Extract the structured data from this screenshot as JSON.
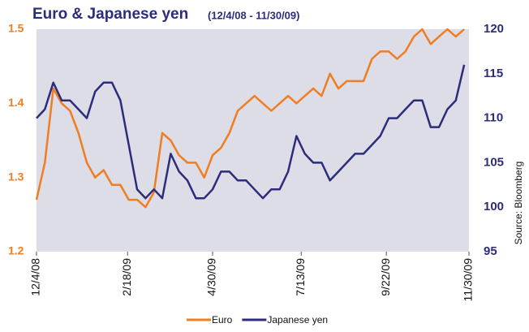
{
  "chart_data": {
    "type": "line",
    "title": "Euro & Japanese yen",
    "subtitle": "(12/4/08 - 11/30/09)",
    "source": "Source: Bloomberg",
    "x": [
      "12/4/08",
      "12/11/08",
      "12/18/08",
      "12/25/08",
      "1/1/09",
      "1/8/09",
      "1/15/09",
      "1/22/09",
      "1/29/09",
      "2/5/09",
      "2/12/09",
      "2/19/09",
      "2/26/09",
      "3/5/09",
      "3/12/09",
      "3/19/09",
      "3/26/09",
      "4/2/09",
      "4/9/09",
      "4/16/09",
      "4/23/09",
      "4/30/09",
      "5/7/09",
      "5/14/09",
      "5/21/09",
      "5/28/09",
      "6/4/09",
      "6/11/09",
      "6/18/09",
      "6/25/09",
      "7/2/09",
      "7/9/09",
      "7/16/09",
      "7/23/09",
      "7/30/09",
      "8/6/09",
      "8/13/09",
      "8/20/09",
      "8/27/09",
      "9/3/09",
      "9/10/09",
      "9/17/09",
      "9/24/09",
      "10/1/09",
      "10/8/09",
      "10/15/09",
      "10/22/09",
      "10/29/09",
      "11/5/09",
      "11/12/09",
      "11/19/09",
      "11/26/09"
    ],
    "xticks": [
      "12/4/08",
      "2/18/09",
      "4/30/09",
      "7/13/09",
      "9/22/09",
      "11/30/09"
    ],
    "series": [
      {
        "name": "Euro",
        "color": "#f07d22",
        "axis": "y",
        "values": [
          1.27,
          1.32,
          1.42,
          1.4,
          1.39,
          1.36,
          1.32,
          1.3,
          1.31,
          1.29,
          1.29,
          1.27,
          1.27,
          1.26,
          1.28,
          1.36,
          1.35,
          1.33,
          1.32,
          1.32,
          1.3,
          1.33,
          1.34,
          1.36,
          1.39,
          1.4,
          1.41,
          1.4,
          1.39,
          1.4,
          1.41,
          1.4,
          1.41,
          1.42,
          1.41,
          1.44,
          1.42,
          1.43,
          1.43,
          1.43,
          1.46,
          1.47,
          1.47,
          1.46,
          1.47,
          1.49,
          1.5,
          1.48,
          1.49,
          1.5,
          1.49,
          1.5
        ]
      },
      {
        "name": "Japanese yen",
        "color": "#2b2d7c",
        "axis": "y2",
        "values": [
          110,
          111,
          114,
          112,
          112,
          111,
          110,
          113,
          114,
          114,
          112,
          107,
          102,
          101,
          102,
          101,
          106,
          104,
          103,
          101,
          101,
          102,
          104,
          104,
          103,
          103,
          102,
          101,
          102,
          102,
          104,
          108,
          106,
          105,
          105,
          103,
          104,
          105,
          106,
          106,
          107,
          108,
          110,
          110,
          111,
          112,
          112,
          109,
          109,
          111,
          112,
          116
        ]
      }
    ],
    "ylim": [
      1.2,
      1.5
    ],
    "yticks": [
      1.2,
      1.3,
      1.4,
      1.5
    ],
    "y2lim": [
      95,
      120
    ],
    "y2ticks": [
      95,
      100,
      105,
      110,
      115,
      120
    ],
    "legend": "bottom"
  }
}
